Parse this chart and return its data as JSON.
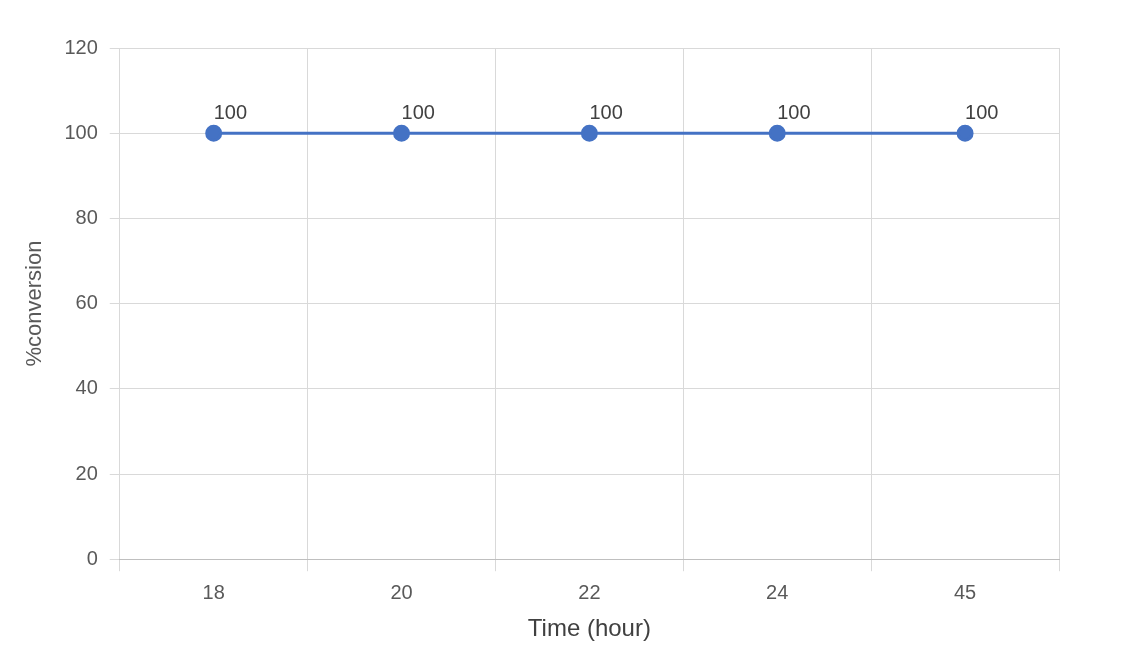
{
  "chart_data": {
    "type": "line",
    "xlabel": "Time (hour)",
    "ylabel": "%conversion",
    "categories": [
      "18",
      "20",
      "22",
      "24",
      "45"
    ],
    "values": [
      100,
      100,
      100,
      100,
      100
    ],
    "color": "#4472c4",
    "marker": "circle",
    "data_labels": true,
    "ylim": [
      0,
      120
    ],
    "yticks": [
      0,
      20,
      40,
      60,
      80,
      100,
      120
    ],
    "grid": true
  }
}
